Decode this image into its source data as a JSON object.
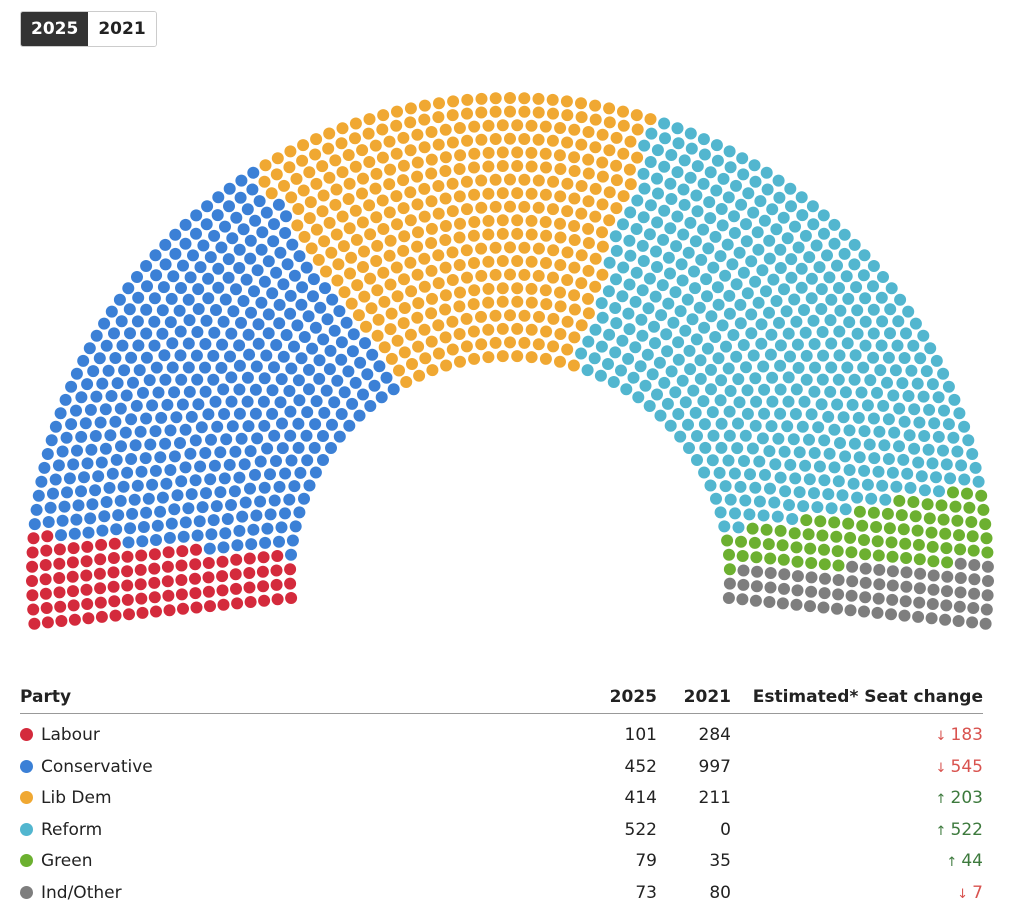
{
  "toggle": {
    "active": 0
  },
  "chart_data": {
    "type": "parliament",
    "category_label": "Party",
    "categories": [
      "Labour",
      "Conservative",
      "Lib Dem",
      "Reform",
      "Green",
      "Ind/Other"
    ],
    "colors": [
      "#d42a3c",
      "#3b80d6",
      "#f0a832",
      "#52b6cf",
      "#6cb030",
      "#7e7e7e"
    ],
    "series": [
      {
        "name": "2025",
        "values": [
          101,
          452,
          414,
          522,
          79,
          73
        ]
      },
      {
        "name": "2021",
        "values": [
          284,
          997,
          211,
          0,
          35,
          80
        ]
      }
    ],
    "seat_change": {
      "label": "Estimated* Seat change",
      "values": [
        183,
        545,
        203,
        522,
        44,
        7
      ],
      "directions": [
        "down",
        "down",
        "up",
        "up",
        "up",
        "down"
      ]
    }
  }
}
